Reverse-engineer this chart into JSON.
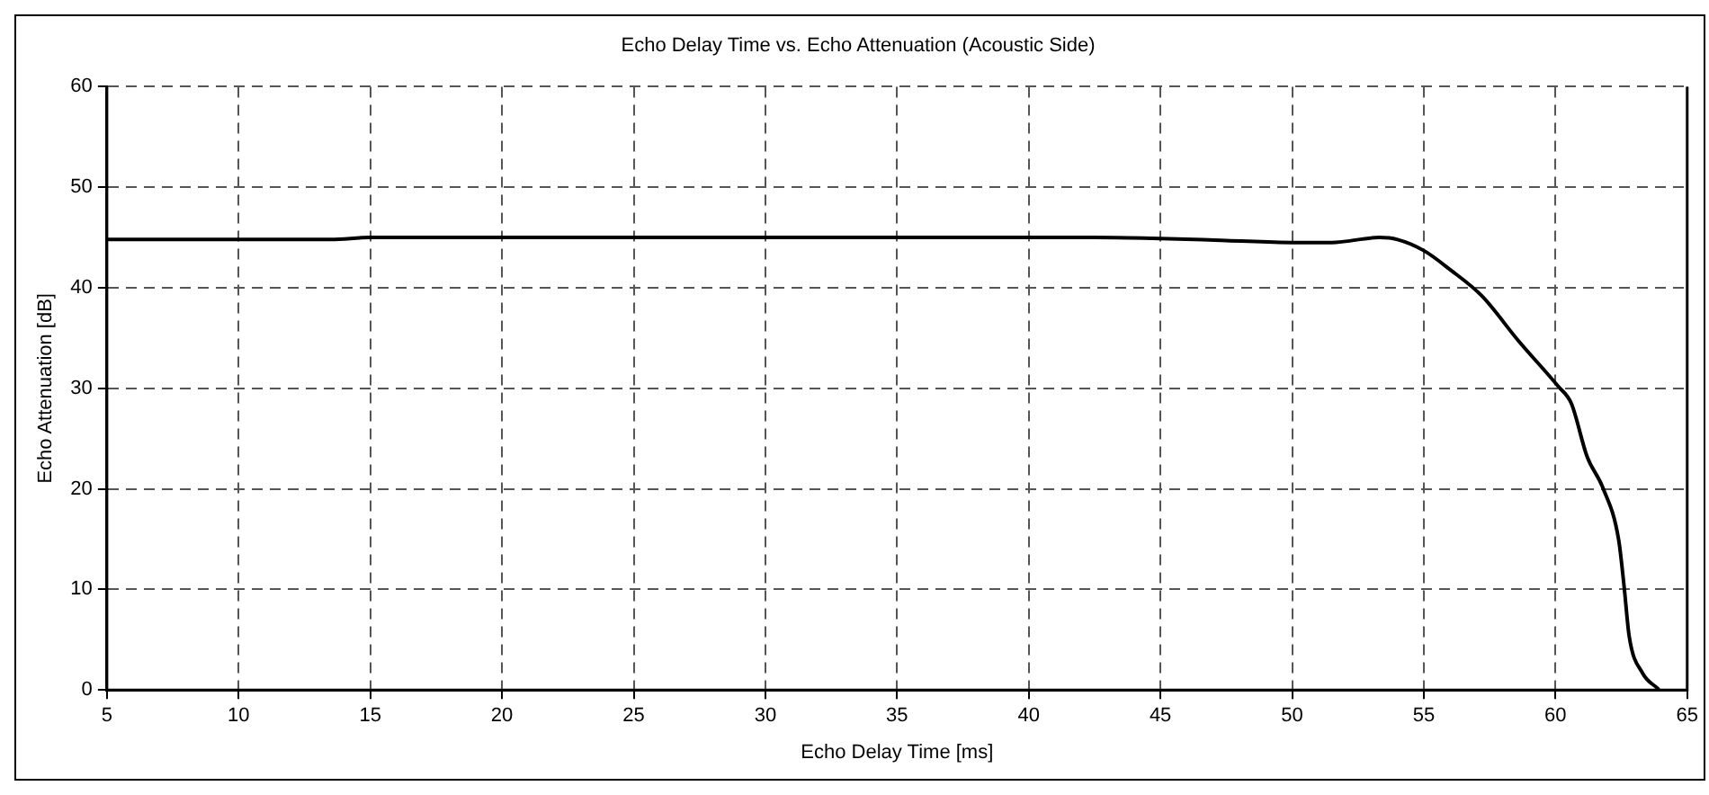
{
  "chart_data": {
    "type": "line",
    "title": "Echo Delay Time vs. Echo Attenuation (Acoustic Side)",
    "xlabel": "Echo Delay Time [ms]",
    "ylabel": "Echo Attenuation [dB]",
    "series": [
      {
        "color": "#000000",
        "x": [
          5,
          10,
          13.5,
          15,
          20,
          25,
          30,
          35,
          40,
          42.5,
          45,
          47.5,
          50,
          51.5,
          53.3,
          54,
          55,
          56,
          57.2,
          58.6,
          60.1,
          60.6,
          61.2,
          61.8,
          62.4,
          62.6,
          62.8,
          63.3,
          63.9
        ],
        "values": [
          44.8,
          44.8,
          44.8,
          45,
          45,
          45,
          45,
          45,
          45,
          45,
          44.9,
          44.7,
          44.5,
          44.5,
          45,
          44.8,
          43.7,
          41.8,
          39.2,
          34.7,
          30.2,
          28.5,
          23.2,
          20.1,
          14.9,
          10.4,
          5.3,
          1.7,
          0.1
        ]
      }
    ],
    "xlim": [
      5,
      65
    ],
    "xticks": [
      5,
      10,
      15,
      20,
      25,
      30,
      35,
      40,
      45,
      50,
      55,
      60,
      65
    ],
    "ylim": [
      0,
      60
    ],
    "yticks": [
      0,
      10,
      20,
      30,
      40,
      50,
      60
    ],
    "grid": true,
    "legend": false,
    "marker": "none",
    "line_style": "solid"
  }
}
